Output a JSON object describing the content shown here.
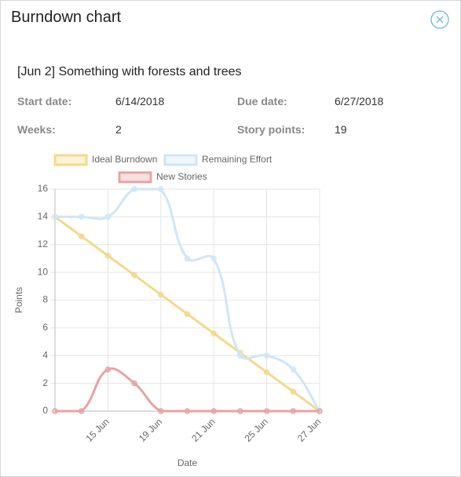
{
  "header": {
    "title": "Burndown chart"
  },
  "task": {
    "title": "[Jun 2] Something with forests and trees",
    "fields": [
      {
        "label": "Start date:",
        "value": "6/14/2018"
      },
      {
        "label": "Due date:",
        "value": "6/27/2018"
      },
      {
        "label": "Weeks:",
        "value": "2"
      },
      {
        "label": "Story points:",
        "value": "19"
      }
    ]
  },
  "chart_data": {
    "type": "line",
    "categories": [
      null,
      null,
      "15 Jun",
      null,
      "19 Jun",
      null,
      "21 Jun",
      null,
      "25 Jun",
      null,
      "27 Jun"
    ],
    "series": [
      {
        "name": "Ideal Burndown",
        "color": "#f3d98a",
        "values": [
          14,
          12.6,
          11.2,
          9.8,
          8.4,
          7,
          5.6,
          4.2,
          2.8,
          1.4,
          0
        ]
      },
      {
        "name": "Remaining Effort",
        "color": "#cfe6f7",
        "values": [
          14,
          14,
          14,
          16,
          16,
          11,
          11,
          4,
          4,
          3,
          0
        ]
      },
      {
        "name": "New Stories",
        "color": "#e8a3a3",
        "values": [
          0,
          0,
          3,
          2,
          0,
          0,
          0,
          0,
          0,
          0,
          0
        ]
      }
    ],
    "ylim": [
      0,
      16
    ],
    "yticks": [
      0,
      2,
      4,
      6,
      8,
      10,
      12,
      14,
      16
    ],
    "y_label": "Points",
    "x_label": "Date",
    "grid": true,
    "legend": "top"
  }
}
